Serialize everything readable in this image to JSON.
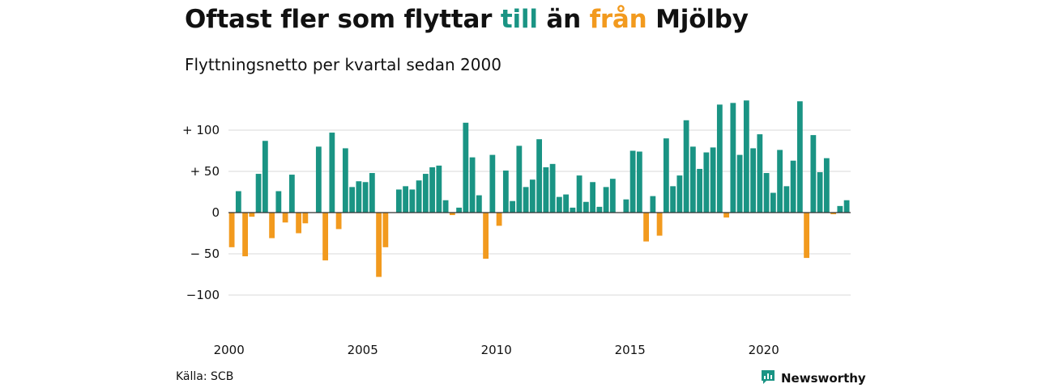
{
  "title": {
    "part1": "Oftast fler som flyttar ",
    "word_in": "till",
    "part2": " än ",
    "word_out": "från",
    "part3": " Mjölby"
  },
  "subtitle": "Flyttningsnetto per kvartal sedan 2000",
  "source": "Källa: SCB",
  "brand": {
    "name": "Newsworthy",
    "logo_icon": "newsworthy-logo-icon"
  },
  "colors": {
    "positive": "#1a9484",
    "negative": "#f29a1e",
    "grid": "#d9d9d9",
    "zero_line": "#333333",
    "text": "#111111"
  },
  "chart_data": {
    "type": "bar",
    "start_year": 2000,
    "periods_per_year": 4,
    "ylim": [
      -130,
      140
    ],
    "yticks": [
      {
        "value": 100,
        "label": "+ 100"
      },
      {
        "value": 50,
        "label": "+  50"
      },
      {
        "value": 0,
        "label": "0"
      },
      {
        "value": -50,
        "label": "− 50"
      },
      {
        "value": -100,
        "label": "−100"
      }
    ],
    "xticks": [
      {
        "year": 2000,
        "label": "2000"
      },
      {
        "year": 2005,
        "label": "2005"
      },
      {
        "year": 2010,
        "label": "2010"
      },
      {
        "year": 2015,
        "label": "2015"
      },
      {
        "year": 2020,
        "label": "2020"
      }
    ],
    "values": [
      -42,
      26,
      -53,
      -5,
      47,
      87,
      -31,
      26,
      -12,
      46,
      -25,
      -13,
      0,
      80,
      -58,
      97,
      -20,
      78,
      31,
      38,
      37,
      48,
      -78,
      -42,
      0,
      28,
      32,
      28,
      39,
      47,
      55,
      57,
      15,
      -3,
      6,
      109,
      67,
      21,
      -56,
      70,
      -16,
      51,
      14,
      81,
      31,
      40,
      89,
      55,
      59,
      19,
      22,
      6,
      45,
      13,
      37,
      7,
      31,
      41,
      0,
      16,
      75,
      74,
      -35,
      20,
      -28,
      90,
      32,
      45,
      112,
      80,
      53,
      73,
      79,
      131,
      -6,
      133,
      70,
      136,
      78,
      95,
      48,
      24,
      76,
      32,
      63,
      135,
      -55,
      94,
      49,
      66,
      -2,
      8,
      15
    ]
  }
}
